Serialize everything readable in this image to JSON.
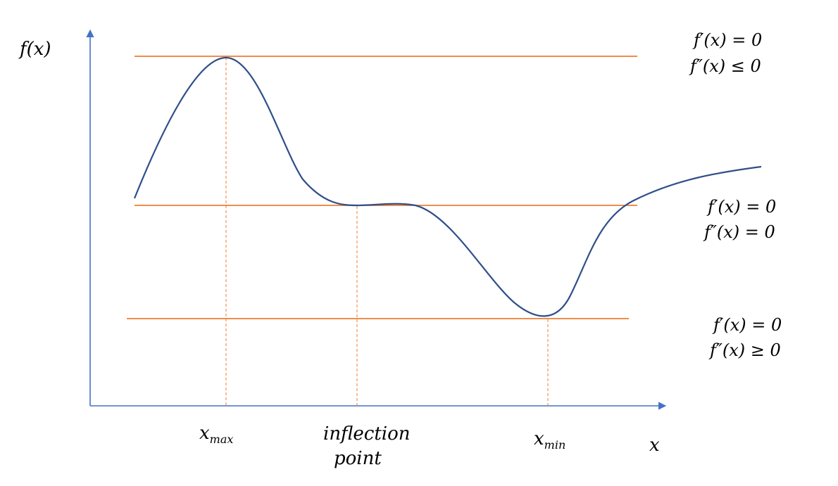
{
  "axes": {
    "y_label": "f(x)",
    "x_label": "x",
    "color": "#4472C4"
  },
  "curve": {
    "color": "#2F4E8A"
  },
  "guides": {
    "color": "#ED7D31"
  },
  "conditions": {
    "maximum": {
      "first": "f′(x) = 0",
      "second": "f″(x) ≤ 0"
    },
    "inflection": {
      "first": "f′(x) = 0",
      "second": "f″(x) = 0"
    },
    "minimum": {
      "first": "f′(x) = 0",
      "second": "f″(x) ≥ 0"
    }
  },
  "x_markers": {
    "max_base": "x",
    "max_sub": "max",
    "inflection_line1": "inflection",
    "inflection_line2": "point",
    "min_base": "x",
    "min_sub": "min"
  }
}
